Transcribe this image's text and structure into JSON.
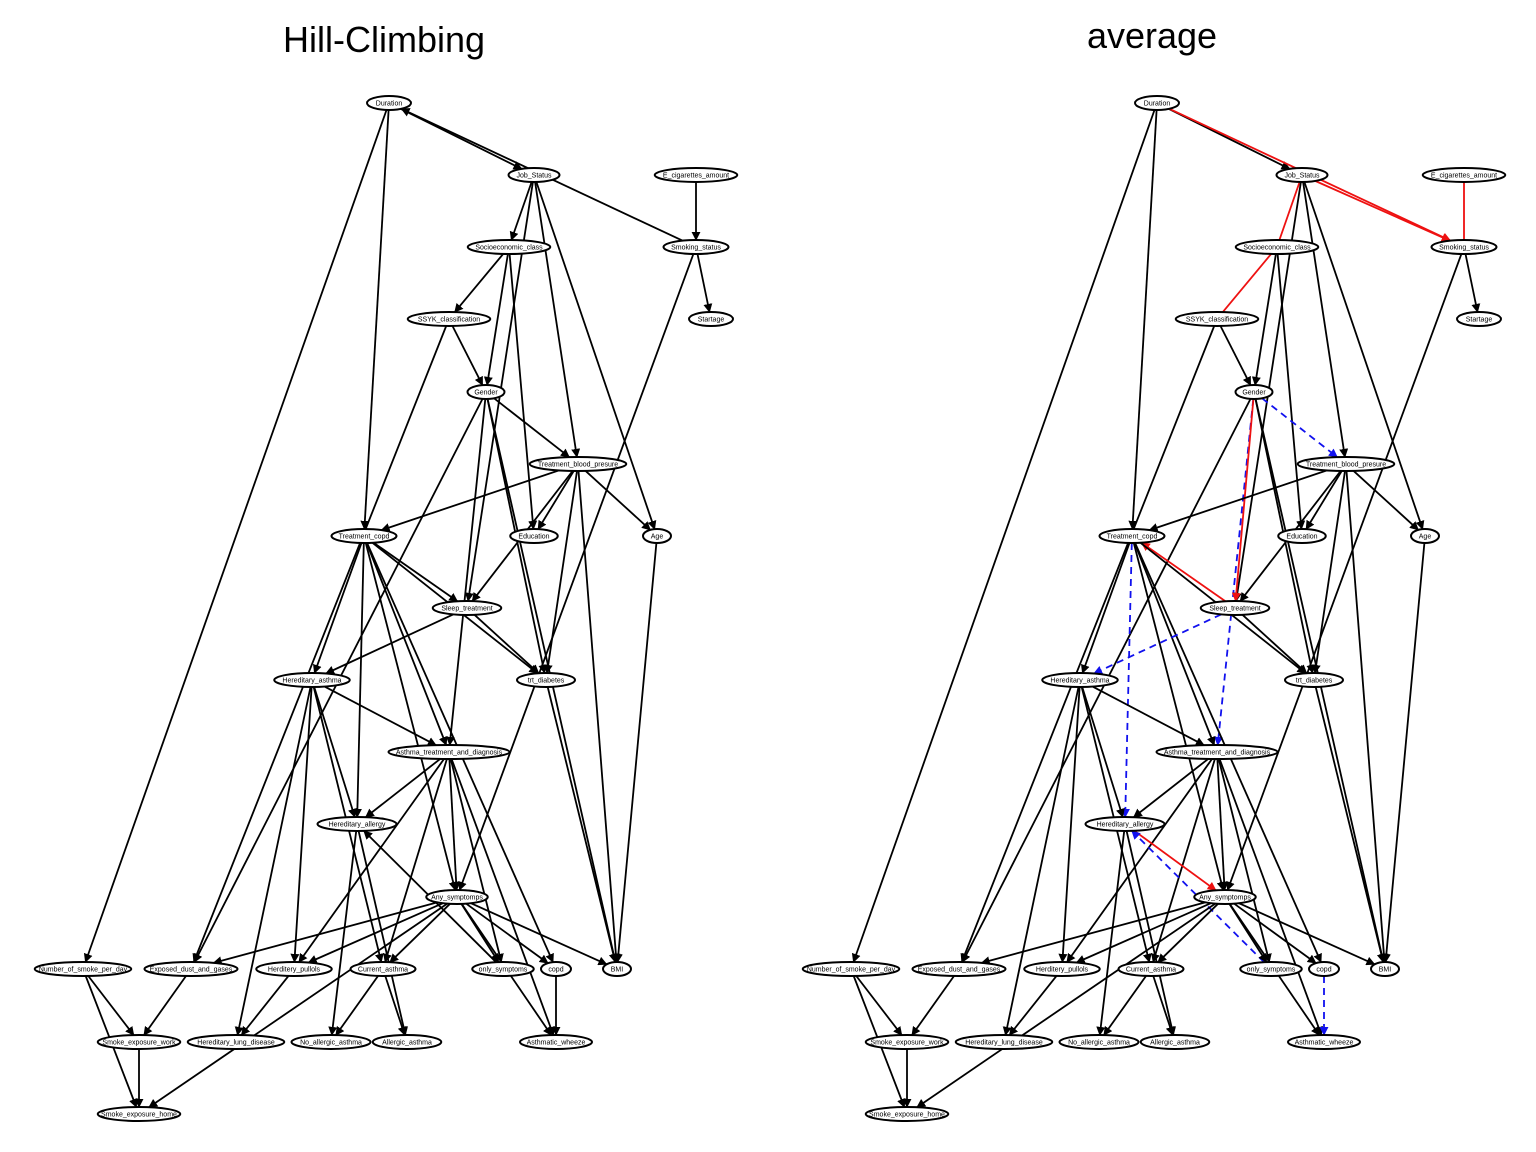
{
  "colors": {
    "black": "#000000",
    "red": "#ee1111",
    "blue": "#1111ee"
  },
  "panels": [
    {
      "key": "left",
      "title": "Hill-Climbing",
      "dx": 0
    },
    {
      "key": "right",
      "title": "average",
      "dx": 768
    }
  ],
  "nodes": [
    {
      "id": "Duration",
      "label": "Duration"
    },
    {
      "id": "Job_Status",
      "label": "Job_Status"
    },
    {
      "id": "E_cig",
      "label": "E_cigarettes_amount"
    },
    {
      "id": "Smoking_status",
      "label": "Smoking_status"
    },
    {
      "id": "Socioeconomic_class",
      "label": "Socioeconomic_class"
    },
    {
      "id": "SSYK",
      "label": "SSYK_classification"
    },
    {
      "id": "Startage",
      "label": "Startage"
    },
    {
      "id": "Gender",
      "label": "Gender"
    },
    {
      "id": "TBP",
      "label": "Treatment_blood_presure"
    },
    {
      "id": "Treatment_copd",
      "label": "Treatment_copd"
    },
    {
      "id": "Education",
      "label": "Education"
    },
    {
      "id": "Age",
      "label": "Age"
    },
    {
      "id": "Sleep_treatment",
      "label": "Sleep_treatment"
    },
    {
      "id": "Hereditary_asthma",
      "label": "Hereditary_asthma"
    },
    {
      "id": "trt_diabetes",
      "label": "trt_diabetes"
    },
    {
      "id": "Asthma_tad",
      "label": "Asthma_treatment_and_diagnosis"
    },
    {
      "id": "Hereditary_allergy",
      "label": "Hereditary_allergy"
    },
    {
      "id": "Any_symptomps",
      "label": "Any_symptomps"
    },
    {
      "id": "Number_smoke",
      "label": "Number_of_smoke_per_day"
    },
    {
      "id": "Exposed_dust",
      "label": "Exposed_dust_and_gases"
    },
    {
      "id": "Herditery_pullols",
      "label": "Herditery_pullols"
    },
    {
      "id": "Current_asthma",
      "label": "Current_asthma"
    },
    {
      "id": "only_symptoms",
      "label": "only_symptoms"
    },
    {
      "id": "copd",
      "label": "copd"
    },
    {
      "id": "BMI",
      "label": "BMI"
    },
    {
      "id": "Smoke_work",
      "label": "Smoke_exposure_work"
    },
    {
      "id": "Hereditary_lung",
      "label": "Hereditary_lung_disease"
    },
    {
      "id": "No_allergic_asthma",
      "label": "No_allergic_asthma"
    },
    {
      "id": "Allergic_asthma",
      "label": "Allergic_asthma"
    },
    {
      "id": "Asthmatic_wheeze",
      "label": "Asthmatic_wheeze"
    },
    {
      "id": "Smoke_home",
      "label": "Smoke_exposure_home"
    }
  ],
  "edges": [
    {
      "from": "Duration",
      "to": "Job_Status",
      "left": "directed",
      "right": "directed"
    },
    {
      "from": "Duration",
      "to": "Treatment_copd",
      "left": "directed",
      "right": "directed"
    },
    {
      "from": "Duration",
      "to": "Number_smoke",
      "left": "directed",
      "right": "directed"
    },
    {
      "from": "Smoking_status",
      "to": "Duration",
      "left": "directed",
      "right": "none"
    },
    {
      "from": "Duration",
      "to": "Smoking_status",
      "left": "none",
      "right": "red-directed"
    },
    {
      "from": "Job_Status",
      "to": "Smoking_status",
      "left": "none",
      "right": "red-directed"
    },
    {
      "from": "E_cig",
      "to": "Smoking_status",
      "left": "directed",
      "right": "red-undirected"
    },
    {
      "from": "Job_Status",
      "to": "Socioeconomic_class",
      "left": "directed",
      "right": "red-undirected"
    },
    {
      "from": "Job_Status",
      "to": "Sleep_treatment",
      "left": "directed",
      "right": "directed"
    },
    {
      "from": "Job_Status",
      "to": "TBP",
      "left": "directed",
      "right": "directed"
    },
    {
      "from": "Job_Status",
      "to": "Age",
      "left": "directed",
      "right": "directed"
    },
    {
      "from": "Smoking_status",
      "to": "Startage",
      "left": "directed",
      "right": "directed"
    },
    {
      "from": "Smoking_status",
      "to": "Any_symptomps",
      "left": "directed",
      "right": "directed"
    },
    {
      "from": "Socioeconomic_class",
      "to": "SSYK",
      "left": "directed",
      "right": "red-undirected"
    },
    {
      "from": "Socioeconomic_class",
      "to": "Gender",
      "left": "directed",
      "right": "directed"
    },
    {
      "from": "Socioeconomic_class",
      "to": "Education",
      "left": "directed",
      "right": "directed"
    },
    {
      "from": "SSYK",
      "to": "Gender",
      "left": "directed",
      "right": "directed"
    },
    {
      "from": "SSYK",
      "to": "Exposed_dust",
      "left": "directed",
      "right": "directed"
    },
    {
      "from": "Gender",
      "to": "TBP",
      "left": "directed",
      "right": "blue-directed"
    },
    {
      "from": "Gender",
      "to": "BMI",
      "left": "directed",
      "right": "directed"
    },
    {
      "from": "Gender",
      "to": "trt_diabetes",
      "left": "directed",
      "right": "directed"
    },
    {
      "from": "Gender",
      "to": "Asthma_tad",
      "left": "directed",
      "right": "blue-directed"
    },
    {
      "from": "Gender",
      "to": "Exposed_dust",
      "left": "directed",
      "right": "directed"
    },
    {
      "from": "Gender",
      "to": "Sleep_treatment",
      "left": "none",
      "right": "red-directed"
    },
    {
      "from": "TBP",
      "to": "Treatment_copd",
      "left": "directed",
      "right": "directed"
    },
    {
      "from": "TBP",
      "to": "Education",
      "left": "directed",
      "right": "directed"
    },
    {
      "from": "TBP",
      "to": "Age",
      "left": "directed",
      "right": "directed"
    },
    {
      "from": "TBP",
      "to": "Sleep_treatment",
      "left": "directed",
      "right": "directed"
    },
    {
      "from": "TBP",
      "to": "trt_diabetes",
      "left": "directed",
      "right": "directed"
    },
    {
      "from": "TBP",
      "to": "BMI",
      "left": "directed",
      "right": "directed"
    },
    {
      "from": "Age",
      "to": "BMI",
      "left": "directed",
      "right": "directed"
    },
    {
      "from": "Treatment_copd",
      "to": "Sleep_treatment",
      "left": "directed",
      "right": "none"
    },
    {
      "from": "Sleep_treatment",
      "to": "Treatment_copd",
      "left": "none",
      "right": "red-directed"
    },
    {
      "from": "Treatment_copd",
      "to": "Hereditary_asthma",
      "left": "directed",
      "right": "directed"
    },
    {
      "from": "Treatment_copd",
      "to": "Hereditary_allergy",
      "left": "directed",
      "right": "blue-directed"
    },
    {
      "from": "Treatment_copd",
      "to": "Asthma_tad",
      "left": "directed",
      "right": "directed"
    },
    {
      "from": "Treatment_copd",
      "to": "trt_diabetes",
      "left": "directed",
      "right": "directed"
    },
    {
      "from": "Treatment_copd",
      "to": "copd",
      "left": "directed",
      "right": "directed"
    },
    {
      "from": "Treatment_copd",
      "to": "Any_symptomps",
      "left": "directed",
      "right": "directed"
    },
    {
      "from": "Sleep_treatment",
      "to": "Hereditary_asthma",
      "left": "directed",
      "right": "blue-directed"
    },
    {
      "from": "Sleep_treatment",
      "to": "trt_diabetes",
      "left": "directed",
      "right": "directed"
    },
    {
      "from": "trt_diabetes",
      "to": "BMI",
      "left": "directed",
      "right": "directed"
    },
    {
      "from": "Hereditary_asthma",
      "to": "Asthma_tad",
      "left": "directed",
      "right": "directed"
    },
    {
      "from": "Hereditary_asthma",
      "to": "Hereditary_allergy",
      "left": "directed",
      "right": "directed"
    },
    {
      "from": "Hereditary_asthma",
      "to": "Herditery_pullols",
      "left": "directed",
      "right": "directed"
    },
    {
      "from": "Hereditary_asthma",
      "to": "Current_asthma",
      "left": "directed",
      "right": "directed"
    },
    {
      "from": "Hereditary_asthma",
      "to": "Hereditary_lung",
      "left": "directed",
      "right": "directed"
    },
    {
      "from": "Asthma_tad",
      "to": "Hereditary_allergy",
      "left": "directed",
      "right": "directed"
    },
    {
      "from": "Asthma_tad",
      "to": "Any_symptomps",
      "left": "directed",
      "right": "directed"
    },
    {
      "from": "Asthma_tad",
      "to": "Current_asthma",
      "left": "directed",
      "right": "directed"
    },
    {
      "from": "Asthma_tad",
      "to": "only_symptoms",
      "left": "directed",
      "right": "directed"
    },
    {
      "from": "Asthma_tad",
      "to": "Asthmatic_wheeze",
      "left": "directed",
      "right": "directed"
    },
    {
      "from": "Asthma_tad",
      "to": "Herditery_pullols",
      "left": "directed",
      "right": "directed"
    },
    {
      "from": "Hereditary_allergy",
      "to": "No_allergic_asthma",
      "left": "directed",
      "right": "directed"
    },
    {
      "from": "Hereditary_allergy",
      "to": "Allergic_asthma",
      "left": "directed",
      "right": "directed"
    },
    {
      "from": "Hereditary_allergy",
      "to": "Any_symptomps",
      "left": "none",
      "right": "red-directed"
    },
    {
      "from": "only_symptoms",
      "to": "Hereditary_allergy",
      "left": "directed",
      "right": "blue-directed"
    },
    {
      "from": "Any_symptomps",
      "to": "Exposed_dust",
      "left": "directed",
      "right": "directed"
    },
    {
      "from": "Any_symptomps",
      "to": "Herditery_pullols",
      "left": "directed",
      "right": "directed"
    },
    {
      "from": "Any_symptomps",
      "to": "Current_asthma",
      "left": "directed",
      "right": "directed"
    },
    {
      "from": "Any_symptomps",
      "to": "only_symptoms",
      "left": "directed",
      "right": "directed"
    },
    {
      "from": "Any_symptomps",
      "to": "copd",
      "left": "directed",
      "right": "directed"
    },
    {
      "from": "Any_symptomps",
      "to": "BMI",
      "left": "directed",
      "right": "directed"
    },
    {
      "from": "Any_symptomps",
      "to": "Asthmatic_wheeze",
      "left": "directed",
      "right": "directed"
    },
    {
      "from": "Any_symptomps",
      "to": "Smoke_home",
      "left": "directed",
      "right": "directed"
    },
    {
      "from": "Number_smoke",
      "to": "Smoke_work",
      "left": "directed",
      "right": "directed"
    },
    {
      "from": "Number_smoke",
      "to": "Smoke_home",
      "left": "directed",
      "right": "directed"
    },
    {
      "from": "Exposed_dust",
      "to": "Smoke_work",
      "left": "directed",
      "right": "directed"
    },
    {
      "from": "Smoke_work",
      "to": "Smoke_home",
      "left": "directed",
      "right": "directed"
    },
    {
      "from": "Herditery_pullols",
      "to": "Hereditary_lung",
      "left": "directed",
      "right": "directed"
    },
    {
      "from": "Current_asthma",
      "to": "No_allergic_asthma",
      "left": "directed",
      "right": "directed"
    },
    {
      "from": "Current_asthma",
      "to": "Allergic_asthma",
      "left": "directed",
      "right": "directed"
    },
    {
      "from": "copd",
      "to": "Asthmatic_wheeze",
      "left": "directed",
      "right": "blue-directed"
    }
  ]
}
